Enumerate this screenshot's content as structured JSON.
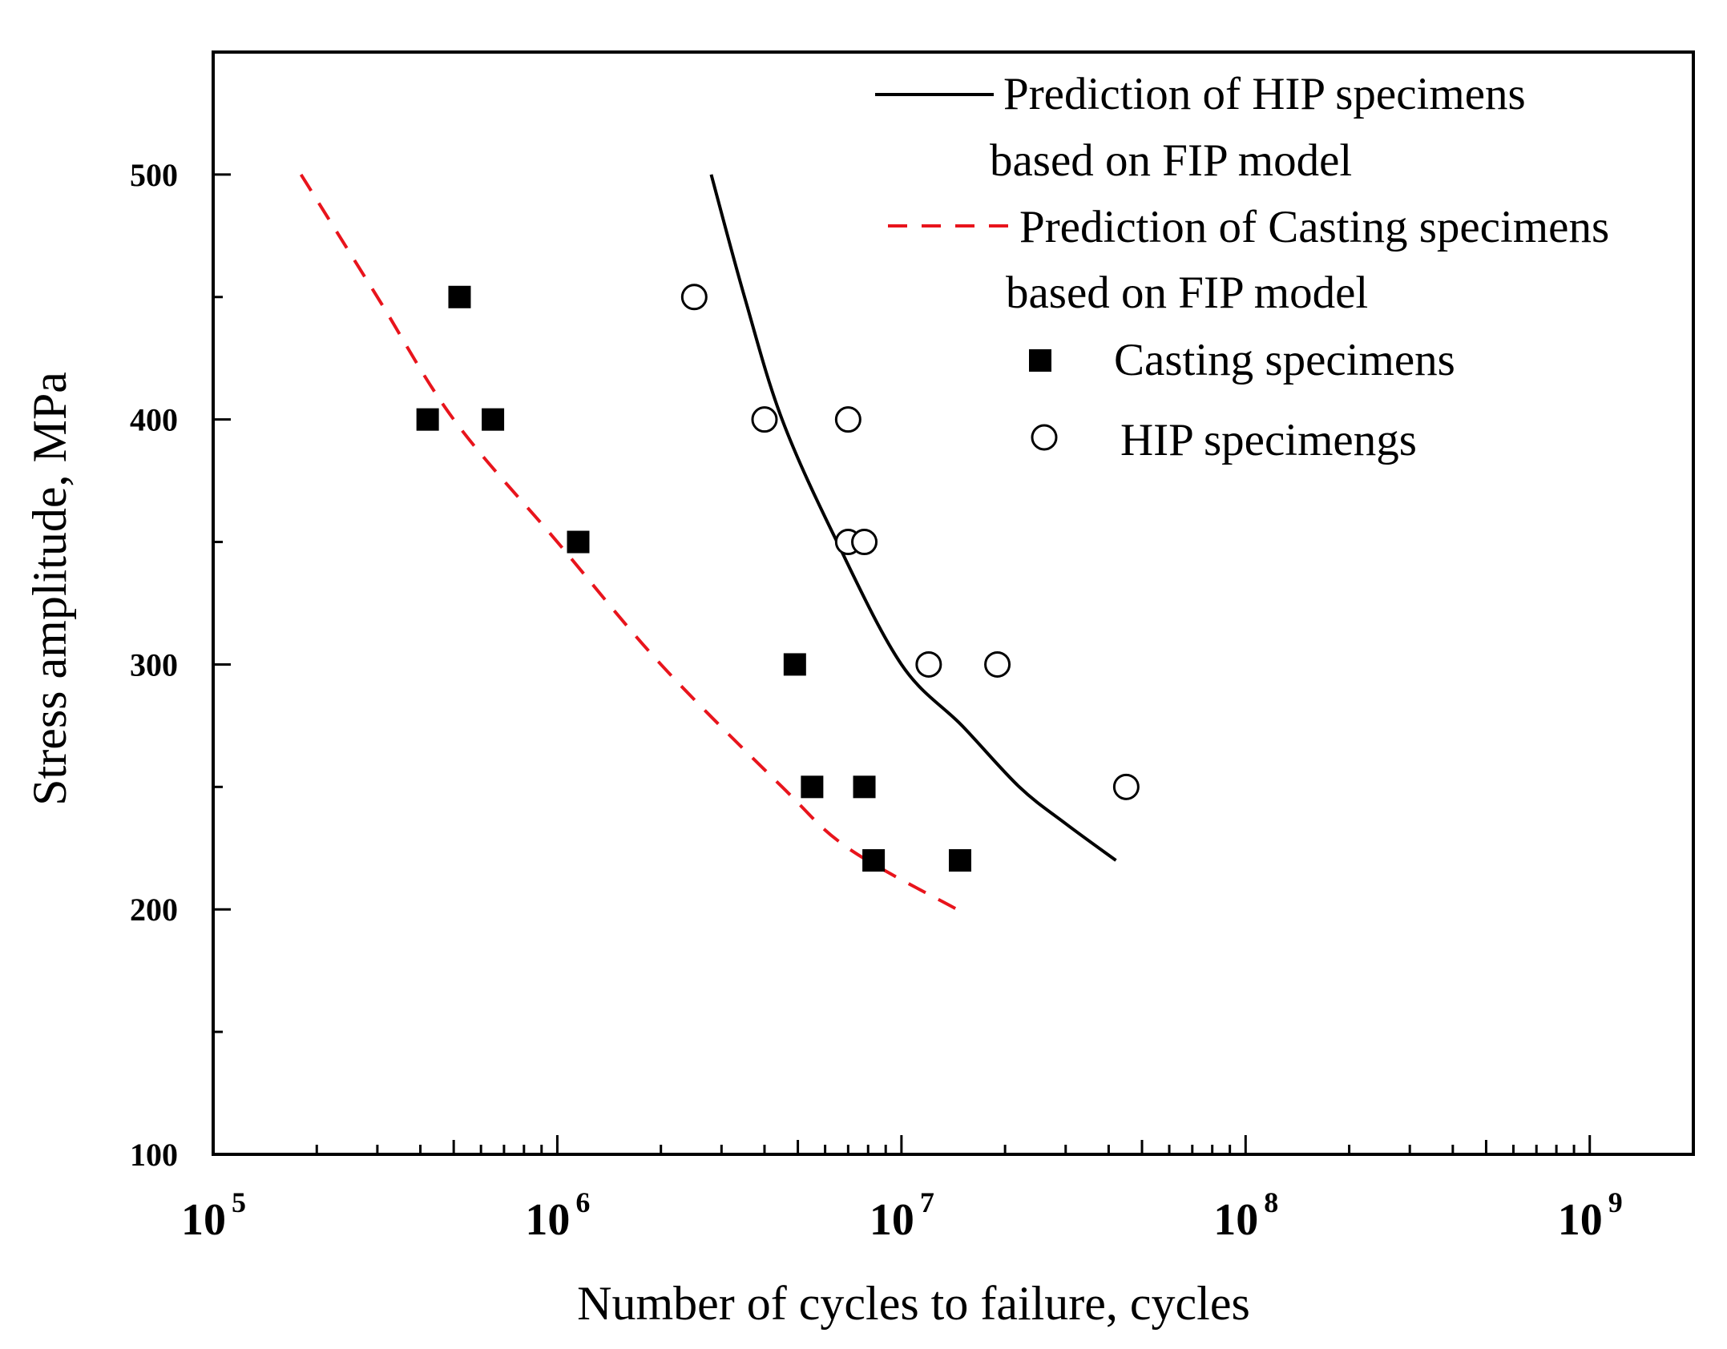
{
  "chart_data": {
    "type": "scatter",
    "title": "",
    "xlabel": "Number of cycles to failure, cycles",
    "ylabel": "Stress amplitude, MPa",
    "xscale": "log",
    "xlim": [
      100000,
      2000000000
    ],
    "ylim": [
      100,
      550
    ],
    "x_tick_labels": [
      {
        "base": "10",
        "exp": "5",
        "value": 100000
      },
      {
        "base": "10",
        "exp": "6",
        "value": 1000000
      },
      {
        "base": "10",
        "exp": "7",
        "value": 10000000
      },
      {
        "base": "10",
        "exp": "8",
        "value": 100000000
      },
      {
        "base": "10",
        "exp": "9",
        "value": 1000000000
      }
    ],
    "y_tick_labels": [
      "100",
      "200",
      "300",
      "400",
      "500"
    ],
    "y_ticks": [
      100,
      200,
      300,
      400,
      500
    ],
    "legend_position": "top-right",
    "series": [
      {
        "name": "Prediction of HIP specimens based on FIP model",
        "legend_lines": [
          "Prediction of HIP specimens",
          "based on FIP model"
        ],
        "kind": "line",
        "style": "solid",
        "color": "#000000",
        "points": [
          [
            2800000,
            500
          ],
          [
            3500000,
            450
          ],
          [
            4500000,
            400
          ],
          [
            6500000,
            350
          ],
          [
            10000000,
            300
          ],
          [
            15000000,
            275
          ],
          [
            22000000,
            250
          ],
          [
            30000000,
            235
          ],
          [
            42000000,
            220
          ]
        ]
      },
      {
        "name": "Prediction of Casting specimens based on FIP model",
        "legend_lines": [
          "Prediction of Casting specimens",
          "based on FIP model"
        ],
        "kind": "line",
        "style": "dashed",
        "color": "#e8141c",
        "points": [
          [
            180000,
            500
          ],
          [
            300000,
            450
          ],
          [
            500000,
            400
          ],
          [
            1000000,
            350
          ],
          [
            2000000,
            300
          ],
          [
            4500000,
            250
          ],
          [
            7000000,
            225
          ],
          [
            14500000,
            200
          ]
        ]
      },
      {
        "name": "Casting specimens",
        "legend_lines": [
          "Casting specimens"
        ],
        "kind": "marker",
        "marker": "filled-square",
        "color": "#000000",
        "points": [
          [
            520000,
            450
          ],
          [
            420000,
            400
          ],
          [
            650000,
            400
          ],
          [
            1150000,
            350
          ],
          [
            4900000,
            300
          ],
          [
            5500000,
            250
          ],
          [
            7800000,
            250
          ],
          [
            8300000,
            220
          ],
          [
            14800000,
            220
          ]
        ]
      },
      {
        "name": "HIP specimengs",
        "legend_lines": [
          "HIP specimengs"
        ],
        "kind": "marker",
        "marker": "open-circle",
        "color": "#000000",
        "points": [
          [
            2500000,
            450
          ],
          [
            4000000,
            400
          ],
          [
            7000000,
            400
          ],
          [
            7000000,
            350
          ],
          [
            7800000,
            350
          ],
          [
            12000000,
            300
          ],
          [
            19000000,
            300
          ],
          [
            45000000,
            250
          ]
        ]
      }
    ]
  }
}
